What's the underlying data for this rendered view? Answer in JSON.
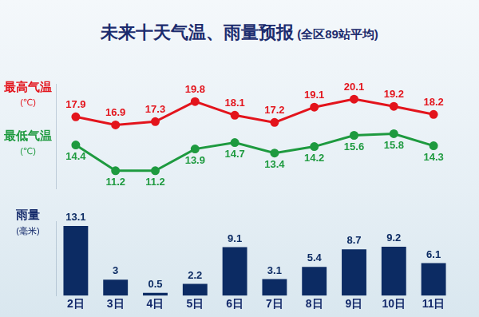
{
  "chart_data": [
    {
      "type": "line",
      "title": "未来十天气温、雨量预报",
      "subtitle": "(全区89站平均)",
      "categories": [
        "2日",
        "3日",
        "4日",
        "5日",
        "6日",
        "7日",
        "8日",
        "9日",
        "10日",
        "11日"
      ],
      "series": [
        {
          "name": "最高气温",
          "unit": "(℃)",
          "color": "#e3141c",
          "values": [
            17.9,
            16.9,
            17.3,
            19.8,
            18.1,
            17.2,
            19.1,
            20.1,
            19.2,
            18.2
          ]
        },
        {
          "name": "最低气温",
          "unit": "(℃)",
          "color": "#1e9a3f",
          "values": [
            14.4,
            11.2,
            11.2,
            13.9,
            14.7,
            13.4,
            14.2,
            15.6,
            15.8,
            14.3
          ]
        }
      ],
      "ylim": [
        9,
        22
      ],
      "yticks": [
        9,
        22
      ],
      "grid": false,
      "data_labels": true,
      "tick_labels": false,
      "marker": "circle"
    },
    {
      "type": "bar",
      "ylabel": "雨量",
      "unit": "(毫米)",
      "categories": [
        "2日",
        "3日",
        "4日",
        "5日",
        "6日",
        "7日",
        "8日",
        "9日",
        "10日",
        "11日"
      ],
      "values": [
        13.1,
        3,
        0.5,
        2.2,
        9.1,
        3.1,
        5.4,
        8.7,
        9.2,
        6.1
      ],
      "color": "#0c2b63",
      "ylim": [
        0,
        14
      ],
      "yticks": [
        0,
        14
      ],
      "grid": false,
      "data_labels": true,
      "tick_labels": "x"
    }
  ]
}
